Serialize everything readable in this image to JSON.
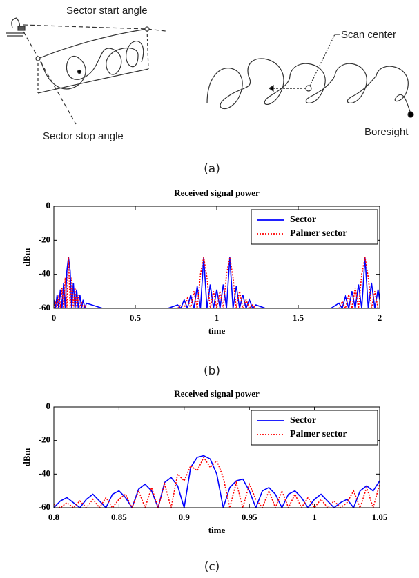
{
  "diagram": {
    "labels": [
      "Sector start angle",
      "Sector stop angle",
      "Scan center",
      "Boresight"
    ]
  },
  "captions": [
    "(a)",
    "(b)",
    "(c)"
  ],
  "chart_data": [
    {
      "type": "line",
      "title": "Received signal power",
      "x_label": "time",
      "y_label": "dBm",
      "xlim": [
        0,
        2
      ],
      "xticks": [
        0,
        0.5,
        1,
        1.5,
        2
      ],
      "ylim": [
        -60,
        0
      ],
      "yticks": [
        0,
        -20,
        -40,
        -60
      ],
      "legend": "upper right",
      "x": [
        0,
        0.01,
        0.02,
        0.03,
        0.04,
        0.05,
        0.06,
        0.07,
        0.08,
        0.09,
        0.1,
        0.11,
        0.12,
        0.13,
        0.14,
        0.15,
        0.16,
        0.17,
        0.18,
        0.19,
        0.2,
        0.3,
        0.5,
        0.7,
        0.76,
        0.78,
        0.8,
        0.82,
        0.84,
        0.86,
        0.88,
        0.9,
        0.92,
        0.94,
        0.96,
        0.98,
        1.0,
        1.02,
        1.04,
        1.06,
        1.08,
        1.1,
        1.12,
        1.14,
        1.16,
        1.18,
        1.2,
        1.22,
        1.24,
        1.3,
        1.5,
        1.7,
        1.75,
        1.77,
        1.79,
        1.81,
        1.83,
        1.85,
        1.87,
        1.89,
        1.91,
        1.93,
        1.95,
        1.97,
        1.99,
        2.0
      ],
      "series": [
        {
          "name": "Sector",
          "color": "#0000ff",
          "style": "solid",
          "values": [
            -55,
            -60,
            -52,
            -60,
            -49,
            -60,
            -45,
            -60,
            -38,
            -30,
            -38,
            -60,
            -45,
            -60,
            -49,
            -60,
            -52,
            -60,
            -55,
            -60,
            -57,
            -60,
            -60,
            -60,
            -58,
            -60,
            -55,
            -60,
            -52,
            -60,
            -47,
            -60,
            -30,
            -60,
            -46,
            -60,
            -49,
            -60,
            -46,
            -60,
            -30,
            -60,
            -47,
            -60,
            -52,
            -60,
            -55,
            -60,
            -58,
            -60,
            -60,
            -60,
            -57,
            -60,
            -53,
            -60,
            -50,
            -60,
            -46,
            -60,
            -30,
            -60,
            -45,
            -60,
            -49,
            -55
          ]
        },
        {
          "name": "Palmer sector",
          "color": "#ff0000",
          "style": "dotted",
          "values": [
            -60,
            -56,
            -60,
            -52,
            -60,
            -48,
            -60,
            -42,
            -60,
            -30,
            -60,
            -42,
            -60,
            -48,
            -60,
            -52,
            -60,
            -56,
            -60,
            -58,
            -60,
            -60,
            -60,
            -60,
            -60,
            -58,
            -60,
            -54,
            -60,
            -50,
            -60,
            -40,
            -30,
            -42,
            -60,
            -50,
            -60,
            -50,
            -60,
            -40,
            -30,
            -42,
            -60,
            -50,
            -60,
            -55,
            -60,
            -58,
            -60,
            -60,
            -60,
            -60,
            -60,
            -56,
            -60,
            -52,
            -60,
            -48,
            -60,
            -40,
            -30,
            -42,
            -60,
            -50,
            -60,
            -60
          ]
        }
      ]
    },
    {
      "type": "line",
      "title": "Received signal power",
      "x_label": "time",
      "y_label": "dBm",
      "xlim": [
        0.8,
        1.05
      ],
      "xticks": [
        0.8,
        0.85,
        0.9,
        0.95,
        1,
        1.05
      ],
      "ylim": [
        -60,
        0
      ],
      "yticks": [
        0,
        -20,
        -40,
        -60
      ],
      "legend": "upper right",
      "x": [
        0.8,
        0.805,
        0.81,
        0.815,
        0.82,
        0.825,
        0.83,
        0.835,
        0.84,
        0.845,
        0.85,
        0.855,
        0.86,
        0.865,
        0.87,
        0.875,
        0.88,
        0.885,
        0.89,
        0.895,
        0.9,
        0.905,
        0.91,
        0.915,
        0.92,
        0.925,
        0.93,
        0.935,
        0.94,
        0.945,
        0.95,
        0.955,
        0.96,
        0.965,
        0.97,
        0.975,
        0.98,
        0.985,
        0.99,
        0.995,
        1.0,
        1.005,
        1.01,
        1.015,
        1.02,
        1.025,
        1.03,
        1.035,
        1.04,
        1.045,
        1.05
      ],
      "series": [
        {
          "name": "Sector",
          "color": "#0000ff",
          "style": "solid",
          "values": [
            -60,
            -56,
            -54,
            -57,
            -60,
            -55,
            -52,
            -56,
            -60,
            -52,
            -50,
            -54,
            -60,
            -49,
            -46,
            -50,
            -60,
            -45,
            -42,
            -47,
            -60,
            -36,
            -30,
            -29,
            -31,
            -40,
            -60,
            -48,
            -44,
            -43,
            -50,
            -60,
            -50,
            -48,
            -52,
            -60,
            -52,
            -50,
            -54,
            -60,
            -55,
            -52,
            -56,
            -60,
            -57,
            -55,
            -60,
            -50,
            -47,
            -50,
            -44
          ]
        },
        {
          "name": "Palmer sector",
          "color": "#ff0000",
          "style": "dotted",
          "values": [
            -58,
            -60,
            -57,
            -60,
            -56,
            -60,
            -55,
            -60,
            -54,
            -60,
            -55,
            -52,
            -60,
            -50,
            -60,
            -48,
            -60,
            -46,
            -60,
            -40,
            -44,
            -35,
            -38,
            -30,
            -36,
            -32,
            -42,
            -60,
            -45,
            -60,
            -46,
            -55,
            -60,
            -50,
            -60,
            -50,
            -60,
            -52,
            -60,
            -54,
            -60,
            -55,
            -60,
            -56,
            -60,
            -57,
            -50,
            -60,
            -48,
            -60,
            -46
          ]
        }
      ]
    }
  ]
}
